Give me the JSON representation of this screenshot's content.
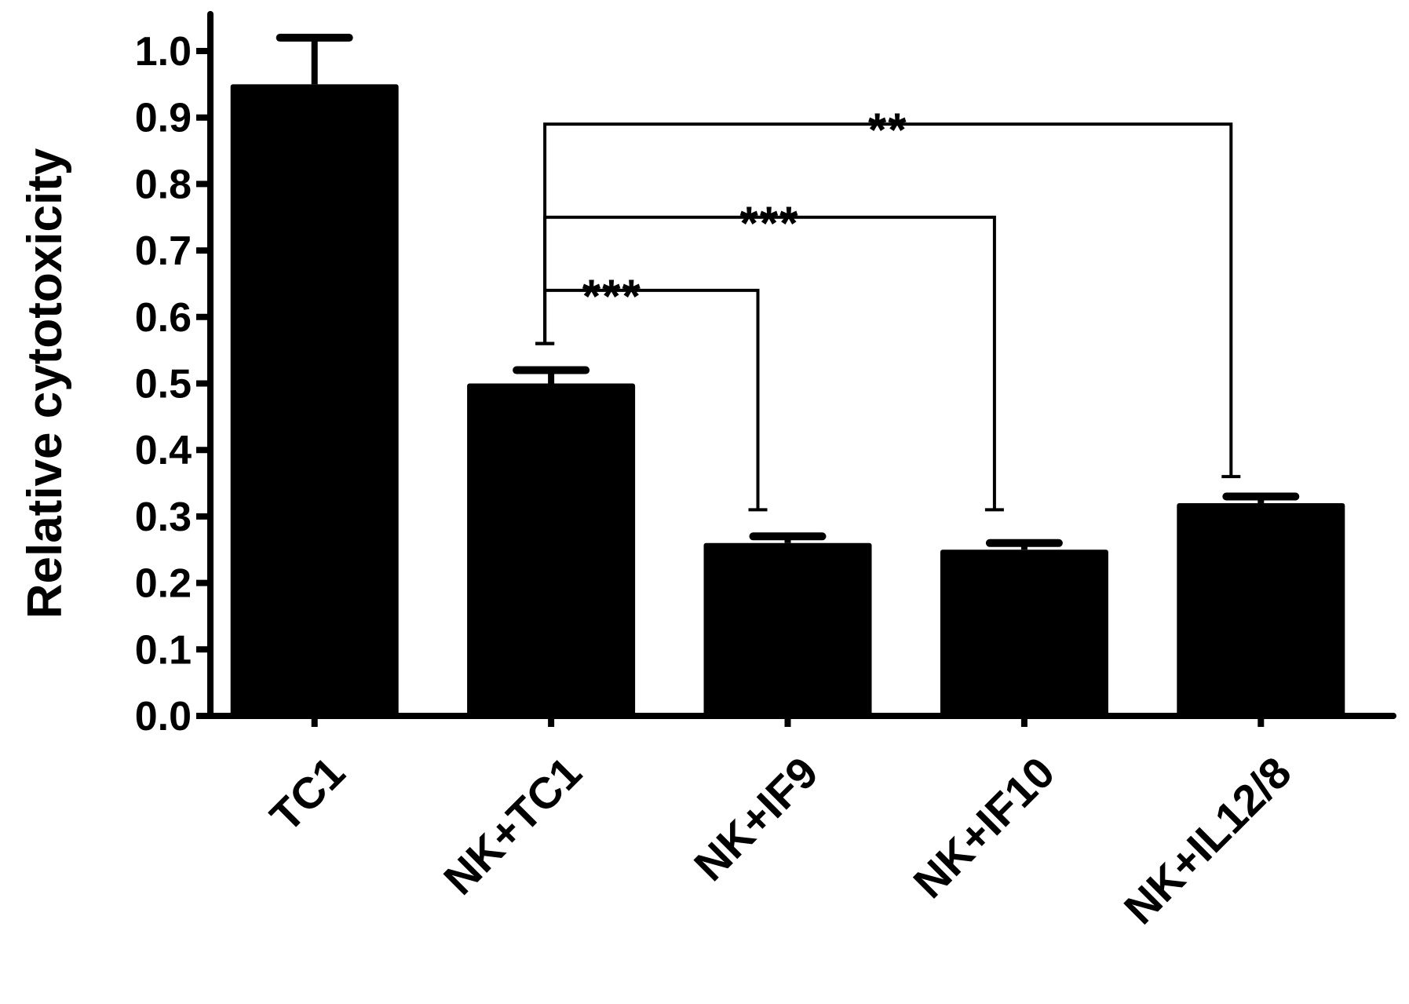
{
  "chart_data": {
    "type": "bar",
    "title": "",
    "xlabel": "",
    "ylabel": "Relative cytotoxicity",
    "ylim": [
      0,
      1.0
    ],
    "yticks": [
      "0.0",
      "0.1",
      "0.2",
      "0.3",
      "0.4",
      "0.5",
      "0.6",
      "0.7",
      "0.8",
      "0.9",
      "1.0"
    ],
    "categories": [
      "TC1",
      "NK+TC1",
      "NK+IF9",
      "NK+IF10",
      "NK+IL12/8"
    ],
    "values": [
      0.95,
      0.5,
      0.26,
      0.25,
      0.32
    ],
    "error": [
      0.07,
      0.02,
      0.01,
      0.01,
      0.01
    ],
    "bar_color": "#000000",
    "comparisons": [
      {
        "from": "NK+TC1",
        "to": "NK+IF9",
        "label": "***"
      },
      {
        "from": "NK+TC1",
        "to": "NK+IF10",
        "label": "***"
      },
      {
        "from": "NK+TC1",
        "to": "NK+IL12/8",
        "label": "**"
      }
    ],
    "grid": false,
    "legend": "none"
  }
}
